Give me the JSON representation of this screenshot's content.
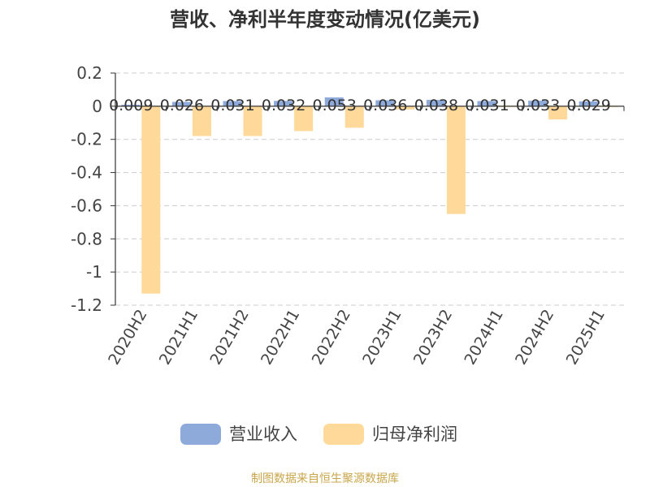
{
  "chart_data": {
    "type": "bar",
    "title": "营收、净利半年度变动情况(亿美元)",
    "categories": [
      "2020H2",
      "2021H1",
      "2021H2",
      "2022H1",
      "2022H2",
      "2023H1",
      "2023H2",
      "2024H1",
      "2024H2",
      "2025H1"
    ],
    "series": [
      {
        "name": "营业收入",
        "color": "#8eaadb",
        "values": [
          0.009,
          0.026,
          0.031,
          0.032,
          0.053,
          0.036,
          0.038,
          0.031,
          0.033,
          0.029
        ],
        "labels": [
          "0.009",
          "0.026",
          "0.031",
          "0.032",
          "0.053",
          "0.036",
          "0.038",
          "0.031",
          "0.033",
          "0.029"
        ]
      },
      {
        "name": "归母净利润",
        "color": "#ffd999",
        "values": [
          -1.13,
          -0.18,
          -0.18,
          -0.15,
          -0.13,
          -0.02,
          -0.65,
          0.0,
          -0.08,
          0.0
        ]
      }
    ],
    "ylim": [
      -1.2,
      0.2
    ],
    "yticks": [
      0.2,
      0,
      -0.2,
      -0.4,
      -0.6,
      -0.8,
      -1,
      -1.2
    ],
    "ytick_labels": [
      "0.2",
      "0",
      "-0.2",
      "-0.4",
      "-0.6",
      "-0.8",
      "-1",
      "-1.2"
    ],
    "grid": true,
    "legend_position": "bottom"
  },
  "source": "制图数据来自恒生聚源数据库"
}
